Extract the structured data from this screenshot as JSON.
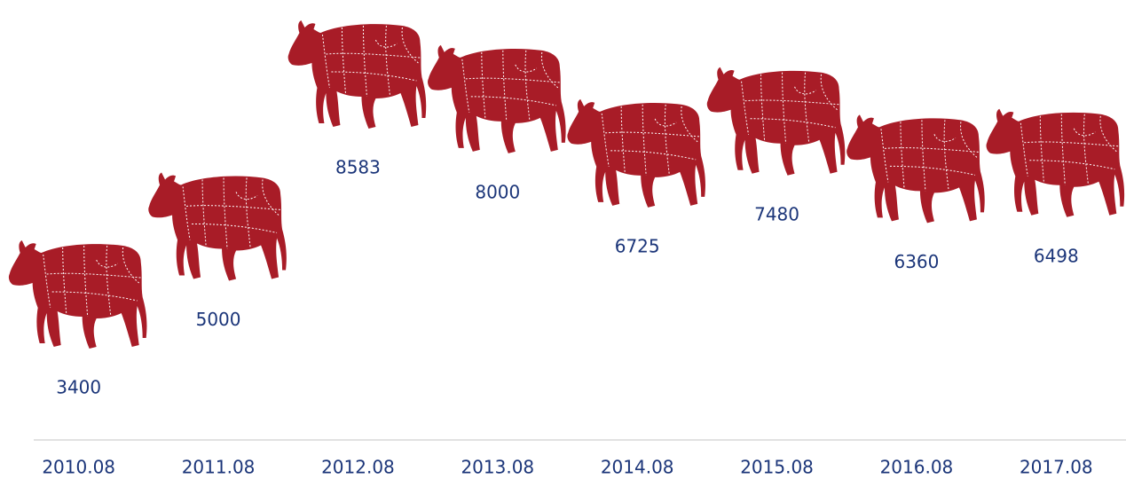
{
  "chart_data": {
    "type": "pictograph",
    "categories": [
      "2010.08",
      "2011.08",
      "2012.08",
      "2013.08",
      "2014.08",
      "2015.08",
      "2016.08",
      "2017.08"
    ],
    "values": [
      3400,
      5000,
      8583,
      8000,
      6725,
      7480,
      6360,
      6498
    ],
    "color": "#a81c27"
  }
}
